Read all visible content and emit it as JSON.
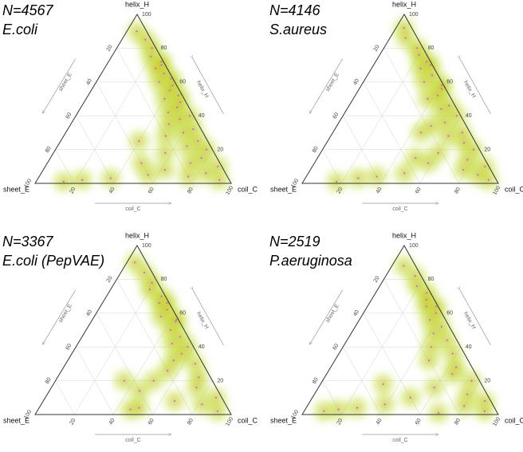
{
  "chart_data": [
    {
      "type": "ternary",
      "title": "N=4567",
      "subtitle": "E.coli",
      "axes": [
        {
          "name": "helix_H",
          "ticks": [
            20,
            40,
            60,
            80,
            100
          ]
        },
        {
          "name": "sheet_E",
          "ticks": [
            20,
            40,
            60,
            80,
            100
          ]
        },
        {
          "name": "coil_C",
          "ticks": [
            20,
            40,
            60,
            80,
            100
          ]
        }
      ],
      "point_color": "#8a8cc4",
      "density_color": "#c2db3a",
      "core_color": "#f0902a",
      "grid": true,
      "points": {
        "helix": [
          90,
          85,
          80,
          75,
          70,
          68,
          65,
          60,
          58,
          55,
          50,
          48,
          45,
          42,
          40,
          38,
          35,
          32,
          30,
          28,
          25,
          22,
          20,
          18,
          15,
          12,
          10,
          8,
          6,
          5,
          4,
          3,
          2,
          2,
          1,
          12,
          25,
          72,
          62,
          52
        ],
        "sheet": [
          5,
          3,
          2,
          5,
          2,
          6,
          3,
          8,
          2,
          5,
          10,
          3,
          6,
          12,
          2,
          8,
          15,
          4,
          10,
          20,
          5,
          12,
          3,
          25,
          8,
          15,
          2,
          30,
          10,
          40,
          20,
          60,
          75,
          5,
          85,
          40,
          35,
          1,
          1,
          2
        ],
        "coil": [
          5,
          12,
          18,
          20,
          28,
          26,
          32,
          32,
          40,
          40,
          40,
          49,
          49,
          46,
          58,
          54,
          50,
          64,
          60,
          52,
          70,
          66,
          77,
          57,
          77,
          73,
          88,
          62,
          84,
          55,
          76,
          37,
          23,
          93,
          14,
          48,
          40,
          27,
          37,
          46
        ]
      }
    },
    {
      "type": "ternary",
      "title": "N=4146",
      "subtitle": "S.aureus",
      "axes": [
        {
          "name": "helix_H",
          "ticks": [
            20,
            40,
            60,
            80,
            100
          ]
        },
        {
          "name": "sheet_E",
          "ticks": [
            20,
            40,
            60,
            80,
            100
          ]
        },
        {
          "name": "coil_C",
          "ticks": [
            20,
            40,
            60,
            80,
            100
          ]
        }
      ],
      "point_color": "#8a8cc4",
      "density_color": "#c2db3a",
      "core_color": "#f0902a",
      "grid": true,
      "points": {
        "helix": [
          92,
          86,
          80,
          76,
          72,
          68,
          64,
          60,
          56,
          52,
          50,
          46,
          44,
          40,
          36,
          34,
          30,
          28,
          24,
          20,
          18,
          14,
          12,
          10,
          8,
          6,
          5,
          4,
          3,
          2,
          1,
          15,
          30,
          70,
          58
        ],
        "sheet": [
          4,
          6,
          3,
          4,
          2,
          7,
          3,
          9,
          2,
          6,
          12,
          3,
          8,
          2,
          10,
          18,
          4,
          12,
          6,
          3,
          22,
          9,
          30,
          2,
          14,
          45,
          8,
          60,
          70,
          4,
          82,
          35,
          25,
          1,
          1
        ],
        "coil": [
          4,
          8,
          17,
          20,
          26,
          25,
          33,
          31,
          42,
          42,
          38,
          51,
          48,
          58,
          54,
          48,
          66,
          60,
          70,
          77,
          60,
          77,
          58,
          88,
          78,
          49,
          87,
          36,
          27,
          94,
          17,
          50,
          45,
          29,
          41
        ]
      }
    },
    {
      "type": "ternary",
      "title": "N=3367",
      "subtitle": "E.coli (PepVAE)",
      "axes": [
        {
          "name": "helix_H",
          "ticks": [
            20,
            40,
            60,
            80,
            100
          ]
        },
        {
          "name": "sheet_E",
          "ticks": [
            20,
            40,
            60,
            80,
            100
          ]
        },
        {
          "name": "coil_C",
          "ticks": [
            20,
            40,
            60,
            80,
            100
          ]
        }
      ],
      "point_color": "#8a8cc4",
      "density_color": "#c2db3a",
      "core_color": "#f0902a",
      "grid": true,
      "points": {
        "helix": [
          90,
          84,
          78,
          74,
          70,
          66,
          62,
          58,
          55,
          50,
          46,
          42,
          40,
          36,
          32,
          30,
          26,
          22,
          20,
          16,
          14,
          10,
          8,
          6,
          4,
          3,
          2,
          20,
          66,
          56
        ],
        "sheet": [
          6,
          4,
          3,
          6,
          2,
          5,
          3,
          8,
          2,
          7,
          4,
          10,
          3,
          8,
          14,
          4,
          20,
          6,
          30,
          10,
          40,
          3,
          25,
          12,
          45,
          50,
          6,
          45,
          1,
          1
        ],
        "coil": [
          4,
          12,
          19,
          20,
          28,
          29,
          35,
          34,
          43,
          43,
          50,
          48,
          57,
          56,
          54,
          66,
          54,
          72,
          50,
          74,
          46,
          87,
          67,
          82,
          51,
          47,
          92,
          35,
          33,
          43
        ]
      }
    },
    {
      "type": "ternary",
      "title": "N=2519",
      "subtitle": "P.aeruginosa",
      "axes": [
        {
          "name": "helix_H",
          "ticks": [
            20,
            40,
            60,
            80,
            100
          ]
        },
        {
          "name": "sheet_E",
          "ticks": [
            20,
            40,
            60,
            80,
            100
          ]
        },
        {
          "name": "coil_C",
          "ticks": [
            20,
            40,
            60,
            80,
            100
          ]
        }
      ],
      "point_color": "#8a8cc4",
      "density_color": "#c2db3a",
      "core_color": "#f0902a",
      "grid": true,
      "points": {
        "helix": [
          88,
          82,
          76,
          72,
          68,
          64,
          60,
          56,
          52,
          48,
          44,
          40,
          36,
          32,
          28,
          24,
          20,
          16,
          12,
          10,
          8,
          6,
          5,
          4,
          3,
          2,
          2,
          1,
          18,
          64
        ],
        "sheet": [
          6,
          3,
          5,
          2,
          4,
          6,
          3,
          8,
          4,
          10,
          5,
          15,
          6,
          20,
          8,
          12,
          4,
          25,
          10,
          40,
          3,
          55,
          15,
          70,
          80,
          6,
          88,
          30,
          50,
          1
        ],
        "coil": [
          6,
          15,
          19,
          26,
          28,
          30,
          37,
          36,
          44,
          42,
          51,
          45,
          58,
          48,
          64,
          64,
          76,
          59,
          78,
          50,
          89,
          39,
          80,
          26,
          17,
          92,
          10,
          69,
          32,
          35
        ]
      }
    }
  ]
}
